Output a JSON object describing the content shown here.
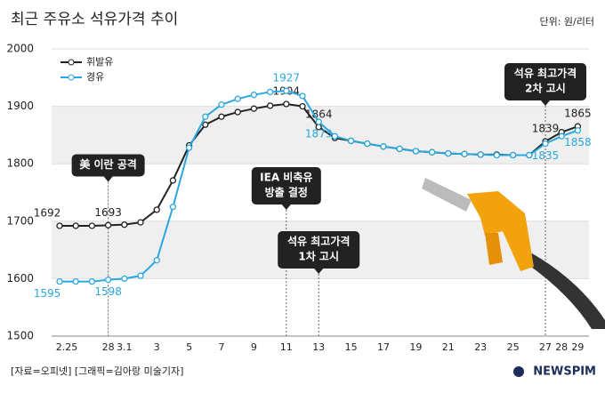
{
  "chart_data": {
    "type": "line",
    "title": "최근 주유소 석유가격 추이",
    "unit": "단위: 원/리터",
    "source": "[자료=오피넷] [그래픽=김아랑 미술기자]",
    "logo": "NEWSPIM",
    "categories": [
      "2.25",
      null,
      null,
      "28",
      "3.1",
      null,
      "3",
      null,
      "5",
      null,
      "7",
      null,
      "9",
      null,
      "11",
      null,
      "13",
      null,
      "15",
      null,
      "17",
      null,
      "19",
      null,
      "21",
      null,
      "23",
      null,
      "25",
      null,
      "27",
      "28",
      "29"
    ],
    "series": [
      {
        "name": "휘발유",
        "color": "#222222",
        "values": [
          1692,
          1692,
          1692,
          1693,
          1694,
          1698,
          1720,
          1771,
          1832,
          1868,
          1882,
          1890,
          1896,
          1901,
          1904,
          1900,
          1864,
          1845,
          1840,
          1835,
          1830,
          1826,
          1822,
          1820,
          1818,
          1817,
          1816,
          1816,
          1815,
          1815,
          1839,
          1855,
          1865
        ]
      },
      {
        "name": "경유",
        "color": "#29a8e0",
        "values": [
          1595,
          1595,
          1595,
          1598,
          1600,
          1605,
          1632,
          1725,
          1828,
          1882,
          1903,
          1913,
          1920,
          1925,
          1927,
          1918,
          1873,
          1848,
          1840,
          1835,
          1830,
          1826,
          1822,
          1820,
          1818,
          1817,
          1816,
          1815,
          1815,
          1815,
          1835,
          1848,
          1858
        ]
      }
    ],
    "ylim": [
      1500,
      2000
    ],
    "yticks": [
      1500,
      1600,
      1700,
      1800,
      1900,
      2000
    ],
    "annotations": [
      {
        "text": [
          "美 이란 공격"
        ]
      },
      {
        "text": [
          "IEA 비축유",
          "방출 결정"
        ]
      },
      {
        "text": [
          "석유 최고가격",
          "1차 고시"
        ]
      },
      {
        "text": [
          "석유 최고가격",
          "2차 고시"
        ]
      }
    ]
  }
}
